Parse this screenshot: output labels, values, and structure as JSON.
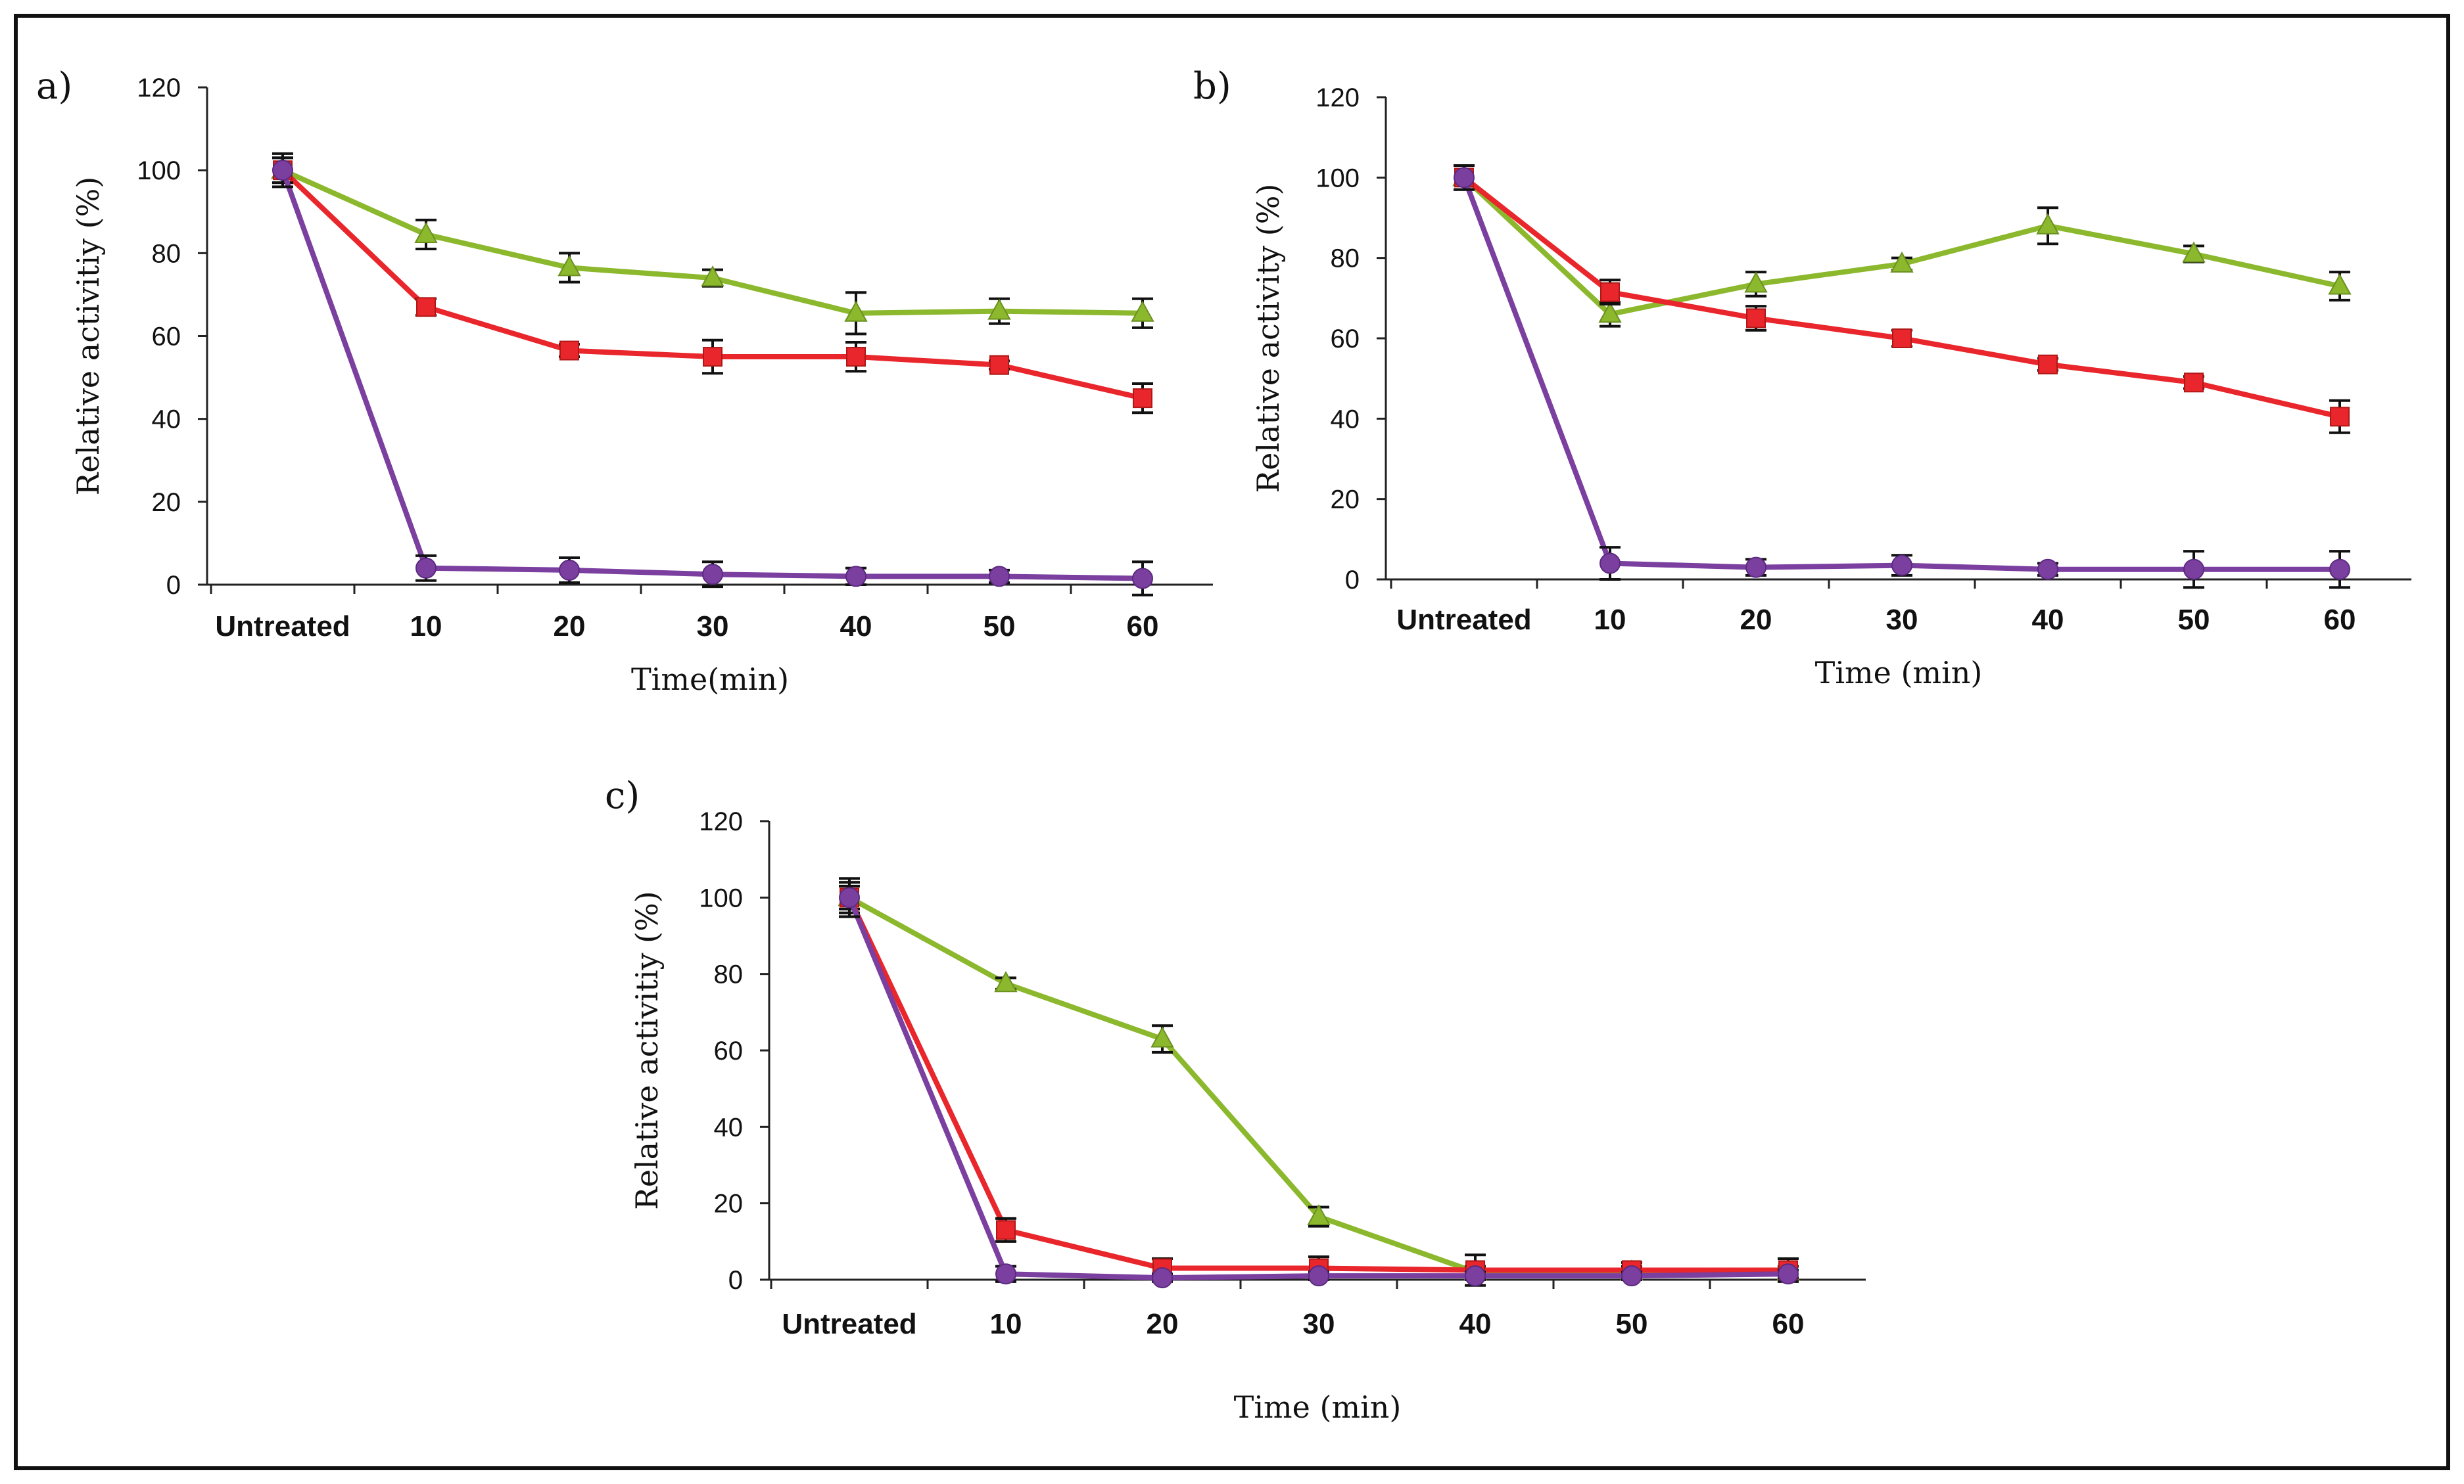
{
  "chart_data": [
    {
      "panel_label": "a)",
      "type": "line",
      "categories": [
        "Untreated",
        "10",
        "20",
        "30",
        "40",
        "50",
        "60"
      ],
      "xlabel": "Time(min)",
      "ylabel": "Relative activitiy (%)",
      "ylim": [
        0,
        120
      ],
      "yticks": [
        "0",
        "20",
        "40",
        "60",
        "80",
        "100",
        "120"
      ],
      "series": [
        {
          "name": "green-triangle",
          "color": "#8cb82d",
          "marker": "triangle",
          "values": [
            100,
            84.5,
            76.5,
            74,
            65.5,
            66,
            65.5
          ],
          "errors": [
            3,
            3.5,
            3.5,
            2,
            5,
            3,
            3.5
          ]
        },
        {
          "name": "red-square",
          "color": "#e8262b",
          "marker": "square",
          "values": [
            100,
            67,
            56.5,
            55,
            55,
            53,
            45
          ],
          "errors": [
            3,
            2,
            1.5,
            4,
            3.5,
            1,
            3.5
          ]
        },
        {
          "name": "purple-circle",
          "color": "#7b3fa0",
          "marker": "circle",
          "values": [
            100,
            4,
            3.5,
            2.5,
            2,
            2,
            1.5
          ],
          "errors": [
            4,
            3,
            3,
            3,
            2,
            1.5,
            4
          ]
        }
      ]
    },
    {
      "panel_label": "b)",
      "type": "line",
      "categories": [
        "Untreated",
        "10",
        "20",
        "30",
        "40",
        "50",
        "60"
      ],
      "xlabel": "Time (min)",
      "ylabel": "Relative activity (%)",
      "ylim": [
        0,
        120
      ],
      "yticks": [
        "0",
        "20",
        "40",
        "60",
        "80",
        "100",
        "120"
      ],
      "series": [
        {
          "name": "green-triangle",
          "color": "#8cb82d",
          "marker": "triangle",
          "values": [
            100,
            66,
            73.5,
            78.5,
            88,
            81,
            73
          ],
          "errors": [
            3,
            3,
            3,
            1.5,
            4.5,
            2,
            3.5
          ]
        },
        {
          "name": "red-square",
          "color": "#e8262b",
          "marker": "square",
          "values": [
            100,
            71.5,
            65,
            60,
            53.5,
            49,
            40.5
          ],
          "errors": [
            3,
            3,
            3,
            2,
            1.5,
            1.5,
            4
          ]
        },
        {
          "name": "purple-circle",
          "color": "#7b3fa0",
          "marker": "circle",
          "values": [
            100,
            4,
            3,
            3.5,
            2.5,
            2.5,
            2.5
          ],
          "errors": [
            3,
            4,
            2,
            2.5,
            1.5,
            4.5,
            4.5
          ]
        }
      ]
    },
    {
      "panel_label": "c)",
      "type": "line",
      "categories": [
        "Untreated",
        "10",
        "20",
        "30",
        "40",
        "50",
        "60"
      ],
      "xlabel": "Time (min)",
      "ylabel": "Relative activitiy (%)",
      "ylim": [
        0,
        120
      ],
      "yticks": [
        "0",
        "20",
        "40",
        "60",
        "80",
        "100",
        "120"
      ],
      "series": [
        {
          "name": "green-triangle",
          "color": "#8cb82d",
          "marker": "triangle",
          "values": [
            100,
            77.5,
            63,
            16.5,
            2,
            2,
            2
          ],
          "errors": [
            3,
            1.5,
            3.5,
            2.5,
            1.5,
            1.5,
            1.5
          ]
        },
        {
          "name": "red-square",
          "color": "#e8262b",
          "marker": "square",
          "values": [
            100,
            13,
            3,
            3,
            2.5,
            2.5,
            2.5
          ],
          "errors": [
            4,
            3,
            2.5,
            3,
            4,
            2,
            3
          ]
        },
        {
          "name": "purple-circle",
          "color": "#7b3fa0",
          "marker": "circle",
          "values": [
            100,
            1.5,
            0.5,
            1,
            1,
            1,
            1.5
          ],
          "errors": [
            5,
            2,
            1,
            1,
            1,
            1,
            1
          ]
        }
      ]
    }
  ]
}
